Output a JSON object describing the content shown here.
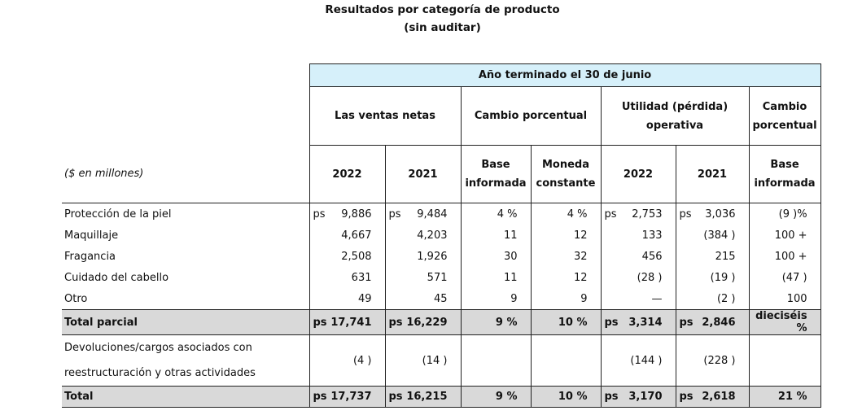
{
  "title": "Resultados por categoría de producto",
  "subtitle": "(sin auditar)",
  "table": {
    "period_header": "Año terminado el 30 de junio",
    "group_headers": [
      {
        "text": "Las ventas netas",
        "span": 2
      },
      {
        "text": "Cambio porcentual",
        "span": 2
      },
      {
        "text": "Utilidad (pérdida) operativa",
        "span": 2
      },
      {
        "text": "Cambio porcentual",
        "span": 1
      }
    ],
    "units_label": "($ en millones)",
    "column_headers": [
      "2022",
      "2021",
      "Base informada",
      "Moneda constante",
      "2022",
      "2021",
      "Base informada"
    ],
    "rows": [
      {
        "label": "Protección de la piel",
        "currency": "ps",
        "cells": [
          "9,886",
          "9,484",
          "4 %",
          "4 %",
          "2,753",
          "3,036",
          "(9 )%"
        ]
      },
      {
        "label": "Maquillaje",
        "cells": [
          "4,667",
          "4,203",
          "11",
          "12",
          "133",
          "(384 )",
          "100 +"
        ]
      },
      {
        "label": "Fragancia",
        "cells": [
          "2,508",
          "1,926",
          "30",
          "32",
          "456",
          "215",
          "100 +"
        ]
      },
      {
        "label": "Cuidado del cabello",
        "cells": [
          "631",
          "571",
          "11",
          "12",
          "(28 )",
          "(19 )",
          "(47 )"
        ]
      },
      {
        "label": "Otro",
        "cells": [
          "49",
          "45",
          "9",
          "9",
          "—",
          "(2 )",
          "100"
        ]
      },
      {
        "label": "Total parcial",
        "currency": "ps",
        "style": "total",
        "cells": [
          "17,741",
          "16,229",
          "9 %",
          "10 %",
          "3,314",
          "2,846",
          "dieciséis %"
        ]
      },
      {
        "label": [
          "Devoluciones/cargos asociados con",
          "reestructuración y otras actividades"
        ],
        "cells": [
          "(4 )",
          "(14 )",
          null,
          null,
          "(144 )",
          "(228 )",
          null
        ]
      },
      {
        "label": "Total",
        "currency": "ps",
        "style": "total",
        "cells": [
          "17,737",
          "16,215",
          "9 %",
          "10 %",
          "3,170",
          "2,618",
          "21 %"
        ]
      }
    ]
  }
}
